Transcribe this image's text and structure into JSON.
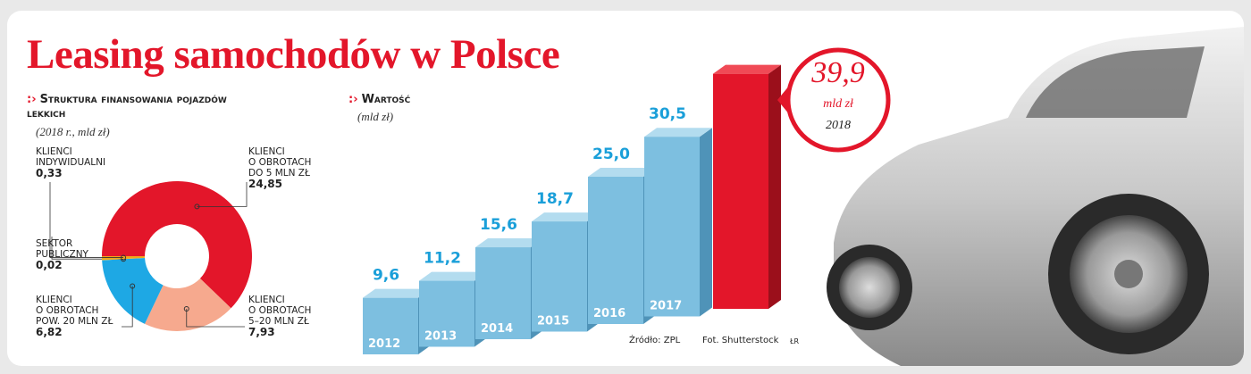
{
  "title": "Leasing samochodów w Polsce",
  "chart_data": [
    {
      "type": "pie",
      "title": "Struktura finansowania pojazdów lekkich",
      "subtitle": "(2018 r., mld zł)",
      "categories": [
        "KLIENCI\nO OBROTACH\nDO 5 MLN ZŁ",
        "KLIENCI\nO OBROTACH\n5–20 MLN ZŁ",
        "KLIENCI\nO OBROTACH\nPOW. 20 MLN ZŁ",
        "SEKTOR\nPUBLICZNY",
        "KLIENCI\nINDYWIDUALNI"
      ],
      "values": [
        24.85,
        7.93,
        6.82,
        0.02,
        0.33
      ],
      "value_labels": [
        "24,85",
        "7,93",
        "6,82",
        "0,02",
        "0,33"
      ],
      "colors": [
        "#e3162a",
        "#f6a98e",
        "#1ea8e4",
        "#c9c34a",
        "#f2a71b"
      ]
    },
    {
      "type": "bar",
      "title": "Wartość",
      "subtitle": "(mld zł)",
      "categories": [
        "2012",
        "2013",
        "2014",
        "2015",
        "2016",
        "2017",
        "2018"
      ],
      "values": [
        9.6,
        11.2,
        15.6,
        18.7,
        25.0,
        30.5,
        39.9
      ],
      "value_labels": [
        "9,6",
        "11,2",
        "15,6",
        "18,7",
        "25,0",
        "30,5",
        "39,9"
      ],
      "colors": [
        "#7dbfe0",
        "#7dbfe0",
        "#7dbfe0",
        "#7dbfe0",
        "#7dbfe0",
        "#7dbfe0",
        "#e3162a"
      ],
      "unit": "mld zł"
    }
  ],
  "footer": {
    "source": "Źródło: ZPL",
    "photo": "Fot. Shutterstock",
    "author": "ŁR"
  }
}
